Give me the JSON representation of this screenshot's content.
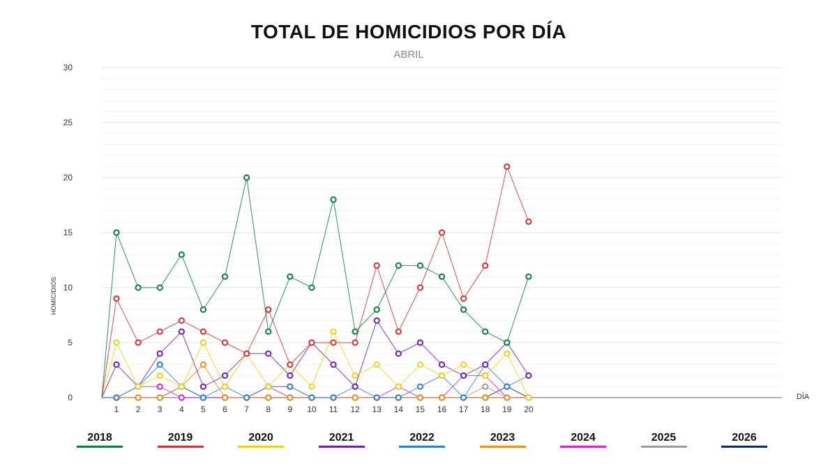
{
  "header": {
    "title": "TOTAL DE HOMICIDIOS POR DÍA",
    "subtitle": "ABRIL"
  },
  "chart_data": {
    "type": "line",
    "title": "TOTAL DE HOMICIDIOS POR DÍA",
    "subtitle": "ABRIL",
    "xlabel": "DÍA",
    "ylabel": "HOMICIDIOS",
    "ylim": [
      0,
      30
    ],
    "yticks": [
      "0",
      "5",
      "10",
      "15",
      "20",
      "25",
      "30"
    ],
    "grid": true,
    "legend_position": "bottom",
    "x": [
      1,
      2,
      3,
      4,
      5,
      6,
      7,
      8,
      9,
      10,
      11,
      12,
      13,
      14,
      15,
      16,
      17,
      18,
      19,
      20
    ],
    "series": [
      {
        "name": "2018",
        "color": "#0a7d3e",
        "values": [
          15,
          10,
          10,
          13,
          8,
          11,
          20,
          6,
          11,
          10,
          18,
          6,
          8,
          12,
          12,
          11,
          8,
          6,
          5,
          11
        ]
      },
      {
        "name": "2019",
        "color": "#d33131",
        "values": [
          9,
          5,
          6,
          7,
          6,
          5,
          4,
          8,
          3,
          5,
          5,
          5,
          12,
          6,
          10,
          15,
          9,
          12,
          21,
          16
        ]
      },
      {
        "name": "2020",
        "color": "#ecd21f",
        "values": [
          5,
          1,
          2,
          1,
          5,
          1,
          4,
          1,
          3,
          1,
          6,
          2,
          3,
          1,
          3,
          2,
          3,
          2,
          4,
          0
        ]
      },
      {
        "name": "2021",
        "color": "#6a1fb0",
        "values": [
          3,
          1,
          4,
          6,
          1,
          2,
          4,
          4,
          2,
          5,
          3,
          1,
          7,
          4,
          5,
          3,
          2,
          3,
          5,
          2
        ]
      },
      {
        "name": "2022",
        "color": "#2a7fd4",
        "values": [
          0,
          1,
          3,
          1,
          0,
          1,
          0,
          1,
          1,
          0,
          0,
          1,
          0,
          0,
          1,
          2,
          0,
          3,
          1,
          2
        ]
      },
      {
        "name": "2023",
        "color": "#f08c1a",
        "values": [
          0,
          0,
          0,
          1,
          3,
          0,
          0,
          0,
          0,
          0,
          0,
          0,
          0,
          0,
          0,
          0,
          0,
          0,
          0,
          0
        ]
      },
      {
        "name": "2024",
        "color": "#e020d8",
        "values": [
          0,
          1,
          1,
          0,
          0,
          0,
          0,
          1,
          0,
          0,
          0,
          0,
          0,
          1,
          0,
          0,
          2,
          2,
          0,
          0
        ]
      },
      {
        "name": "2025",
        "color": "#9a9a9a",
        "values": [
          0,
          0,
          0,
          0,
          0,
          0,
          0,
          1,
          1,
          0,
          0,
          0,
          0,
          0,
          0,
          0,
          0,
          1,
          0,
          0
        ]
      },
      {
        "name": "2026",
        "color": "#0b2a5a",
        "values": [
          0,
          0,
          0,
          1,
          0,
          0,
          0,
          0,
          0,
          0,
          0,
          0,
          0,
          0,
          0,
          0,
          0,
          0,
          1,
          0
        ]
      }
    ]
  }
}
